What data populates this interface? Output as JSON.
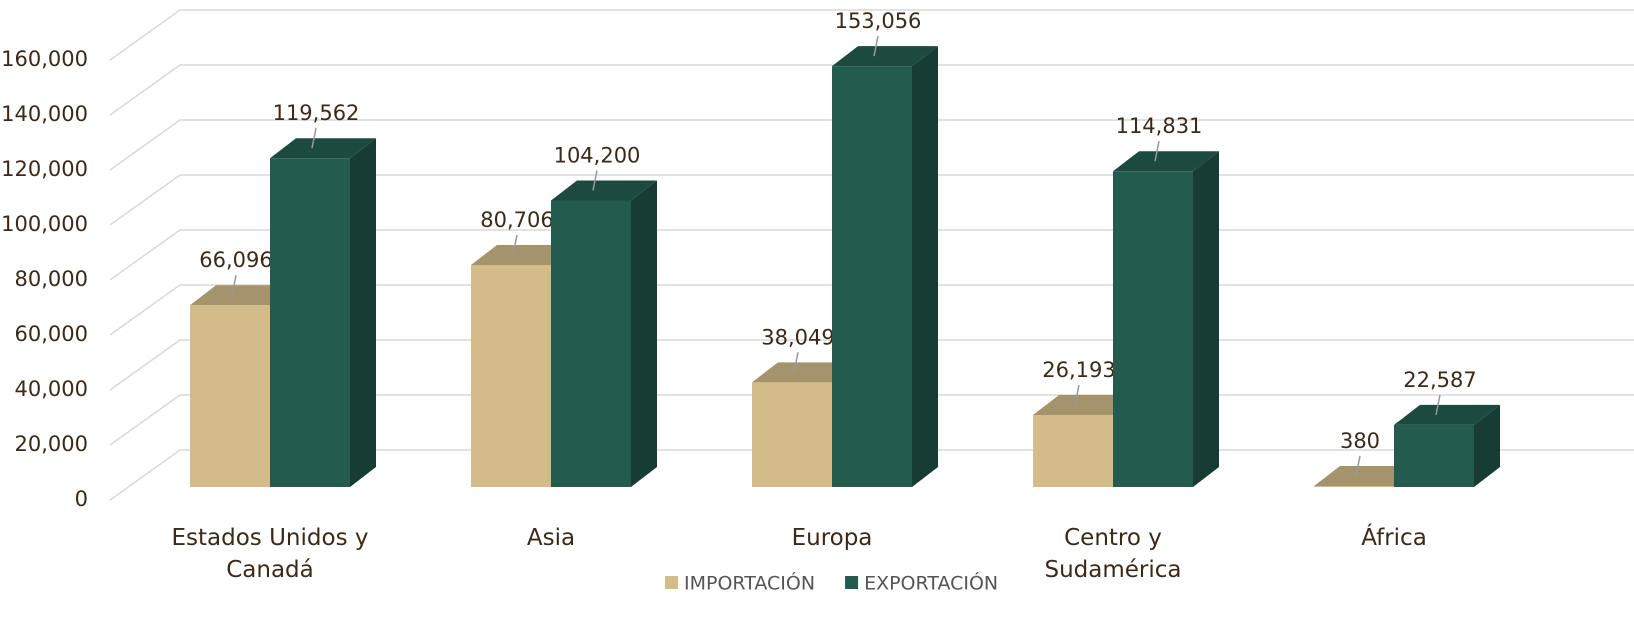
{
  "chart_data": {
    "type": "bar3d",
    "categories": [
      "Estados Unidos y Canadá",
      "Asia",
      "Europa",
      "Centro y Sudamérica",
      "África"
    ],
    "series": [
      {
        "name": "IMPORTACIÓN",
        "color": "#d3bc8a",
        "values": [
          66096,
          80706,
          38049,
          26193,
          380
        ],
        "value_labels": [
          "66,096",
          "80,706",
          "38,049",
          "26,193",
          "380"
        ]
      },
      {
        "name": "EXPORTACIÓN",
        "color": "#235c4e",
        "values": [
          119562,
          104200,
          153056,
          114831,
          22587
        ],
        "value_labels": [
          "119,562",
          "104,200",
          "153,056",
          "114,831",
          "22,587"
        ]
      }
    ],
    "ylim": [
      0,
      160000
    ],
    "yticks": [
      0,
      {
        "value": 20000,
        "label": "20,000"
      },
      {
        "value": 40000,
        "label": "40,000"
      },
      {
        "value": 60000,
        "label": "60,000"
      },
      {
        "value": 80000,
        "label": "80,000"
      },
      {
        "value": 100000,
        "label": "100,000"
      },
      {
        "value": 120000,
        "label": "120,000"
      },
      {
        "value": 140000,
        "label": "140,000"
      },
      {
        "value": 160000,
        "label": "160,000"
      }
    ],
    "grid": true,
    "legend": "bottom"
  }
}
